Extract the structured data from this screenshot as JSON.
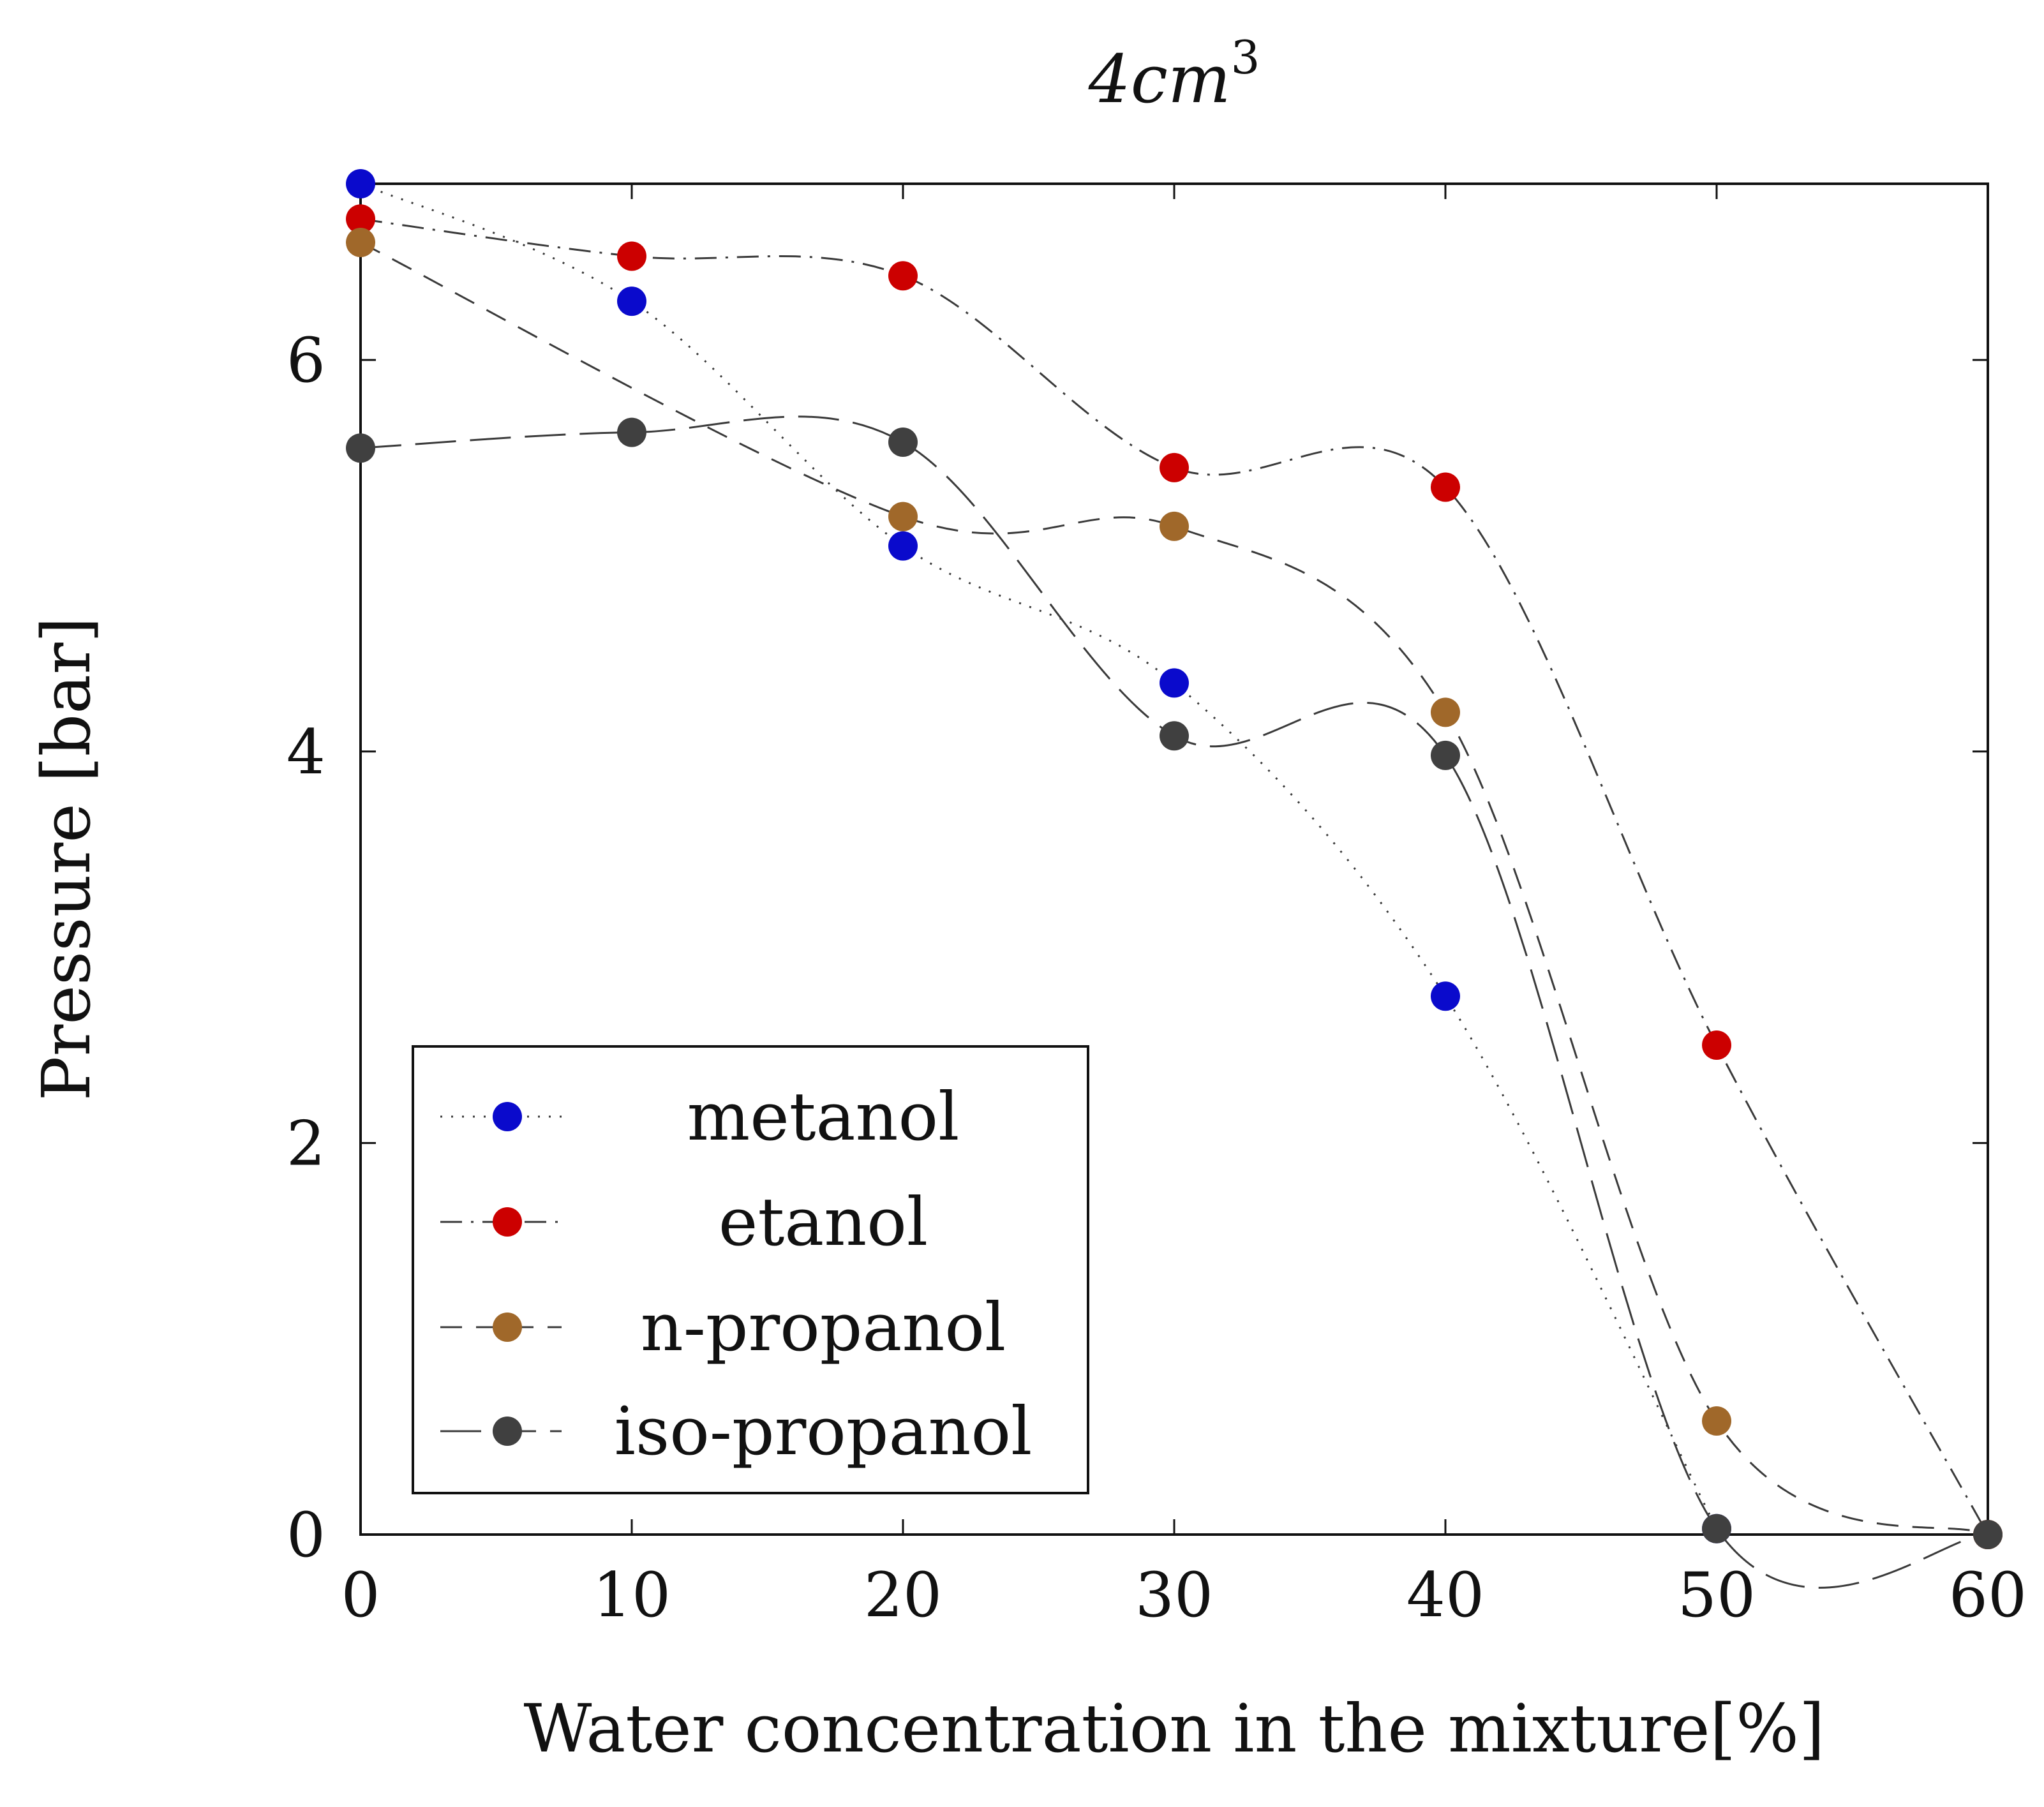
{
  "chart_data": {
    "type": "line",
    "title": "4cm",
    "title_superscript": "3",
    "xlabel": "Water concentration in the mixture[%]",
    "ylabel": "Pressure [bar]",
    "xlim": [
      0,
      60
    ],
    "ylim": [
      0,
      6.9
    ],
    "x_ticks": [
      0,
      10,
      20,
      30,
      40,
      50,
      60
    ],
    "y_ticks": [
      0,
      2,
      4,
      6
    ],
    "grid": false,
    "legend_position": "bottom-left",
    "series": [
      {
        "name": "metanol",
        "color": "#0a0acc",
        "dash": "dotted",
        "x": [
          0,
          10,
          20,
          30,
          40,
          50
        ],
        "y": [
          6.9,
          6.3,
          5.05,
          4.35,
          2.75,
          0.03
        ]
      },
      {
        "name": "etanol",
        "color": "#cc0000",
        "dash": "dashdot",
        "x": [
          0,
          10,
          20,
          30,
          40,
          50,
          60
        ],
        "y": [
          6.72,
          6.53,
          6.43,
          5.45,
          5.35,
          2.5,
          0
        ]
      },
      {
        "name": "n-propanol",
        "color": "#a0682a",
        "dash": "dashed",
        "x": [
          0,
          20,
          30,
          40,
          50,
          60
        ],
        "y": [
          6.6,
          5.2,
          5.15,
          4.2,
          0.58,
          0
        ]
      },
      {
        "name": "iso-propanol",
        "color": "#404040",
        "dash": "longdash",
        "x": [
          0,
          10,
          20,
          30,
          40,
          50,
          60
        ],
        "y": [
          5.55,
          5.63,
          5.58,
          4.08,
          3.98,
          0.03,
          0
        ]
      }
    ]
  }
}
